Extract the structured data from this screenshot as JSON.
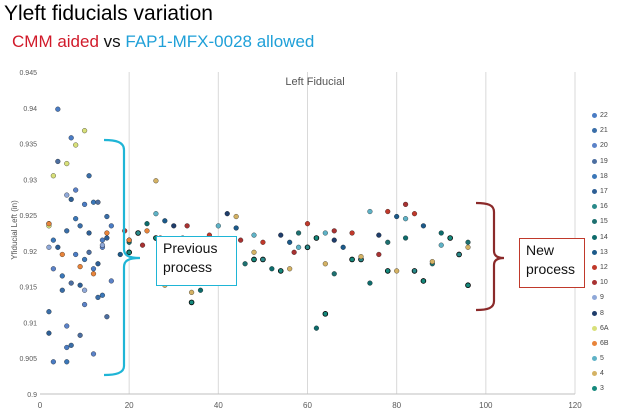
{
  "header": {
    "title": "Yleft fiducials variation",
    "subtitle_red": "CMM aided",
    "subtitle_mid": " vs ",
    "subtitle_blue": "FAP1-MFX-0028 allowed"
  },
  "annotations": {
    "previous": "Previous process",
    "new": "New process"
  },
  "chart_data": {
    "type": "scatter",
    "title": "Left Fiducial",
    "xlabel": "",
    "ylabel": "Yfiducial Left (in)",
    "xlim": [
      0,
      120
    ],
    "ylim": [
      0.9,
      0.945
    ],
    "xticks": [
      0,
      20,
      40,
      60,
      80,
      100,
      120
    ],
    "yticks": [
      0.9,
      0.905,
      0.91,
      0.915,
      0.92,
      0.925,
      0.93,
      0.935,
      0.94,
      0.945
    ],
    "grid": "vertical",
    "legend_position": "right",
    "series": [
      {
        "name": "22",
        "color": "#4a7cc4",
        "points": [
          [
            3,
            0.9045
          ],
          [
            6,
            0.9065
          ],
          [
            8,
            0.9195
          ],
          [
            10,
            0.9265
          ],
          [
            12,
            0.9175
          ],
          [
            14,
            0.9215
          ],
          [
            4,
            0.9398
          ],
          [
            7,
            0.9358
          ],
          [
            16,
            0.9235
          ]
        ]
      },
      {
        "name": "21",
        "color": "#3a6ea8",
        "points": [
          [
            2,
            0.9115
          ],
          [
            5,
            0.9145
          ],
          [
            7,
            0.9068
          ],
          [
            9,
            0.9235
          ],
          [
            11,
            0.9305
          ],
          [
            13,
            0.9135
          ],
          [
            15,
            0.9248
          ],
          [
            6,
            0.9228
          ]
        ]
      },
      {
        "name": "20",
        "color": "#5b82c8",
        "points": [
          [
            3,
            0.9175
          ],
          [
            6,
            0.9095
          ],
          [
            8,
            0.9285
          ],
          [
            10,
            0.9125
          ],
          [
            12,
            0.9056
          ],
          [
            14,
            0.9205
          ],
          [
            16,
            0.9158
          ]
        ]
      },
      {
        "name": "19",
        "color": "#4c6ea0",
        "points": [
          [
            2,
            0.9238
          ],
          [
            4,
            0.9325
          ],
          [
            7,
            0.9155
          ],
          [
            9,
            0.9082
          ],
          [
            11,
            0.9198
          ],
          [
            13,
            0.9268
          ],
          [
            15,
            0.9108
          ]
        ]
      },
      {
        "name": "18",
        "color": "#3b77b8",
        "points": [
          [
            3,
            0.9215
          ],
          [
            5,
            0.9165
          ],
          [
            8,
            0.9245
          ],
          [
            10,
            0.9188
          ],
          [
            12,
            0.9268
          ],
          [
            14,
            0.9138
          ],
          [
            6,
            0.9045
          ]
        ]
      },
      {
        "name": "17",
        "color": "#2e5f95",
        "points": [
          [
            2,
            0.9085
          ],
          [
            4,
            0.9205
          ],
          [
            7,
            0.9272
          ],
          [
            9,
            0.9152
          ],
          [
            11,
            0.9225
          ],
          [
            13,
            0.9182
          ],
          [
            15,
            0.9218
          ]
        ]
      },
      {
        "name": "16",
        "color": "#2a8a8a",
        "points": [
          [
            22,
            0.9225
          ],
          [
            30,
            0.9192
          ],
          [
            40,
            0.9185
          ],
          [
            50,
            0.9188
          ],
          [
            60,
            0.9205
          ],
          [
            72,
            0.9188
          ],
          [
            84,
            0.9172
          ],
          [
            94,
            0.9195
          ]
        ]
      },
      {
        "name": "15",
        "color": "#1e7070",
        "points": [
          [
            20,
            0.9212
          ],
          [
            34,
            0.9158
          ],
          [
            46,
            0.9182
          ],
          [
            58,
            0.9225
          ],
          [
            66,
            0.9168
          ],
          [
            78,
            0.9212
          ],
          [
            88,
            0.9182
          ],
          [
            96,
            0.9212
          ]
        ]
      },
      {
        "name": "14",
        "color": "#0e6b6b",
        "points": [
          [
            24,
            0.9238
          ],
          [
            36,
            0.9145
          ],
          [
            52,
            0.9175
          ],
          [
            62,
            0.9092
          ],
          [
            74,
            0.9155
          ],
          [
            82,
            0.9218
          ],
          [
            90,
            0.9225
          ]
        ]
      },
      {
        "name": "13",
        "color": "#1c5a8a",
        "points": [
          [
            18,
            0.9195
          ],
          [
            28,
            0.9242
          ],
          [
            44,
            0.9232
          ],
          [
            56,
            0.9212
          ],
          [
            68,
            0.9205
          ],
          [
            80,
            0.9248
          ],
          [
            86,
            0.9235
          ]
        ]
      },
      {
        "name": "12",
        "color": "#c0392b",
        "points": [
          [
            19,
            0.9228
          ],
          [
            27,
            0.9218
          ],
          [
            38,
            0.9222
          ],
          [
            50,
            0.9212
          ],
          [
            60,
            0.9238
          ],
          [
            70,
            0.9225
          ],
          [
            78,
            0.9255
          ],
          [
            84,
            0.9252
          ]
        ]
      },
      {
        "name": "10",
        "color": "#a83232",
        "points": [
          [
            23,
            0.9208
          ],
          [
            33,
            0.9235
          ],
          [
            45,
            0.9215
          ],
          [
            57,
            0.9198
          ],
          [
            66,
            0.9228
          ],
          [
            76,
            0.9195
          ],
          [
            82,
            0.9265
          ]
        ]
      },
      {
        "name": "9",
        "color": "#8fa8d8",
        "points": [
          [
            2,
            0.9205
          ],
          [
            6,
            0.9278
          ],
          [
            10,
            0.9145
          ],
          [
            14,
            0.9208
          ]
        ]
      },
      {
        "name": "8",
        "color": "#1f3d6b",
        "points": [
          [
            20,
            0.9215
          ],
          [
            30,
            0.9235
          ],
          [
            42,
            0.9252
          ],
          [
            54,
            0.9222
          ],
          [
            66,
            0.9215
          ],
          [
            76,
            0.9222
          ]
        ]
      },
      {
        "name": "6A",
        "color": "#d8e07a",
        "points": [
          [
            3,
            0.9305
          ],
          [
            6,
            0.9322
          ],
          [
            8,
            0.9348
          ],
          [
            10,
            0.9368
          ],
          [
            2,
            0.9235
          ]
        ]
      },
      {
        "name": "6B",
        "color": "#e8843a",
        "points": [
          [
            2,
            0.9238
          ],
          [
            5,
            0.9195
          ],
          [
            9,
            0.9178
          ],
          [
            12,
            0.9168
          ],
          [
            15,
            0.9225
          ],
          [
            20,
            0.9215
          ],
          [
            24,
            0.9228
          ]
        ]
      },
      {
        "name": "5",
        "color": "#5fb2c6",
        "points": [
          [
            26,
            0.9252
          ],
          [
            32,
            0.9218
          ],
          [
            40,
            0.9235
          ],
          [
            48,
            0.9222
          ],
          [
            58,
            0.9205
          ],
          [
            64,
            0.9225
          ],
          [
            74,
            0.9255
          ],
          [
            82,
            0.9245
          ],
          [
            90,
            0.9208
          ]
        ]
      },
      {
        "name": "4",
        "color": "#d4b264",
        "points": [
          [
            28,
            0.9152
          ],
          [
            34,
            0.9142
          ],
          [
            40,
            0.9178
          ],
          [
            48,
            0.9198
          ],
          [
            56,
            0.9175
          ],
          [
            64,
            0.9182
          ],
          [
            72,
            0.9192
          ],
          [
            80,
            0.9172
          ],
          [
            88,
            0.9185
          ],
          [
            96,
            0.9205
          ],
          [
            26,
            0.9298
          ],
          [
            44,
            0.9248
          ]
        ]
      },
      {
        "name": "3",
        "color": "#15897c",
        "points": [
          [
            20,
            0.9198
          ],
          [
            26,
            0.9218
          ],
          [
            34,
            0.9128
          ],
          [
            42,
            0.9178
          ],
          [
            48,
            0.9188
          ],
          [
            54,
            0.9172
          ],
          [
            62,
            0.9218
          ],
          [
            70,
            0.9188
          ],
          [
            78,
            0.9172
          ],
          [
            86,
            0.9158
          ],
          [
            92,
            0.9218
          ],
          [
            96,
            0.9152
          ],
          [
            64,
            0.9112
          ]
        ]
      }
    ]
  },
  "legend_label_icon": "circle-marker"
}
